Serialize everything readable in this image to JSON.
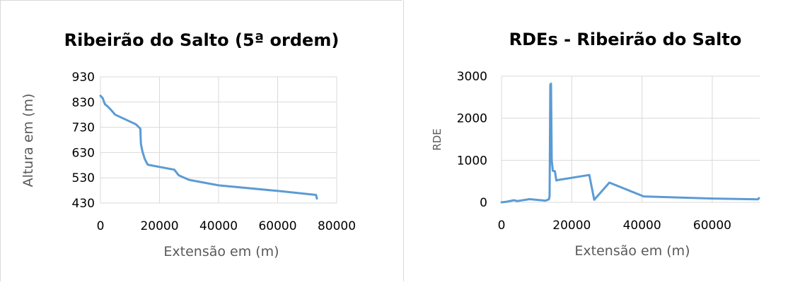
{
  "chart_data": [
    {
      "type": "line",
      "title": "Ribeirão do Salto (5ª ordem)",
      "xlabel": "Extensão em (m)",
      "ylabel": "Altura em (m)",
      "xlim": [
        0,
        80000
      ],
      "ylim": [
        430,
        930
      ],
      "xticks": [
        "0",
        "20000",
        "40000",
        "60000",
        "80000"
      ],
      "yticks": [
        "430",
        "530",
        "630",
        "730",
        "830",
        "930"
      ],
      "xtick_values": [
        0,
        20000,
        40000,
        60000,
        80000
      ],
      "ytick_values": [
        430,
        530,
        630,
        730,
        830,
        930
      ],
      "grid": true,
      "series": [
        {
          "color": "#5b9bd5",
          "x": [
            0,
            800,
            1500,
            2500,
            3500,
            5000,
            12000,
            13500,
            13700,
            14200,
            15000,
            16000,
            25000,
            26500,
            30000,
            40000,
            60000,
            73000,
            73300
          ],
          "y": [
            855,
            845,
            822,
            812,
            800,
            780,
            742,
            725,
            665,
            635,
            605,
            582,
            562,
            540,
            522,
            500,
            478,
            462,
            448
          ]
        }
      ]
    },
    {
      "type": "line",
      "title": "RDEs - Ribeirão do Salto",
      "xlabel": "Extensão em (m)",
      "ylabel": "RDE",
      "xlim": [
        0,
        73500
      ],
      "ylim": [
        0,
        3000
      ],
      "xticks": [
        "0",
        "20000",
        "40000",
        "60000"
      ],
      "yticks": [
        "0",
        "1000",
        "2000",
        "3000"
      ],
      "xtick_values": [
        0,
        20000,
        40000,
        60000
      ],
      "ytick_values": [
        0,
        1000,
        2000,
        3000
      ],
      "grid": true,
      "series": [
        {
          "color": "#5b9bd5",
          "x": [
            0,
            1500,
            3500,
            4500,
            8000,
            12500,
            13500,
            13700,
            13900,
            14100,
            14300,
            14600,
            15200,
            15600,
            16000,
            25000,
            26400,
            30700,
            40500,
            60000,
            73000,
            73300
          ],
          "y": [
            0,
            15,
            50,
            30,
            75,
            40,
            70,
            150,
            2800,
            2820,
            1000,
            750,
            740,
            520,
            530,
            650,
            60,
            470,
            140,
            90,
            70,
            100
          ]
        }
      ]
    }
  ]
}
